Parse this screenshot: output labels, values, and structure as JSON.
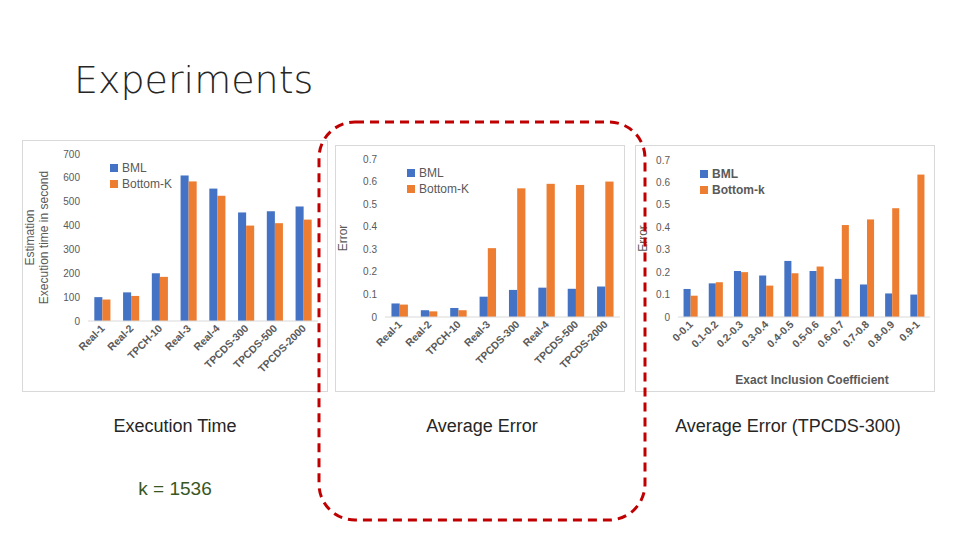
{
  "slide": {
    "title": "Experiments",
    "captions": [
      "Execution Time",
      "Average Error",
      "Average Error (TPCDS-300)"
    ],
    "note": "k = 1536"
  },
  "chart_data": [
    {
      "type": "bar",
      "ylabel": [
        "Estimation",
        "Execution time in second"
      ],
      "categories": [
        "Real-1",
        "Real-2",
        "TPCH-10",
        "Real-3",
        "Real-4",
        "TPCDS-300",
        "TPCDS-500",
        "TPCDS-2000"
      ],
      "series": [
        {
          "name": "BML",
          "color": "#4472c4",
          "values": [
            100,
            120,
            200,
            610,
            555,
            455,
            460,
            480
          ]
        },
        {
          "name": "Bottom-K",
          "color": "#ed7d31",
          "values": [
            90,
            105,
            185,
            585,
            525,
            400,
            410,
            425
          ]
        }
      ],
      "ylim": [
        0,
        700
      ],
      "yticks": [
        0,
        100,
        200,
        300,
        400,
        500,
        600,
        700
      ],
      "grid": false,
      "legend": "upper left"
    },
    {
      "type": "bar",
      "ylabel": "Error",
      "categories": [
        "Real-1",
        "Real-2",
        "TPCH-10",
        "Real-3",
        "TPCDS-300",
        "Real-4",
        "TPCDS-500",
        "TPCDS-2000"
      ],
      "series": [
        {
          "name": "BML",
          "color": "#4472c4",
          "values": [
            0.06,
            0.03,
            0.04,
            0.09,
            0.12,
            0.13,
            0.125,
            0.135
          ]
        },
        {
          "name": "Bottom-K",
          "color": "#ed7d31",
          "values": [
            0.055,
            0.025,
            0.03,
            0.305,
            0.57,
            0.59,
            0.585,
            0.6
          ]
        }
      ],
      "ylim": [
        0,
        0.7
      ],
      "yticks": [
        0,
        0.1,
        0.2,
        0.3,
        0.4,
        0.5,
        0.6,
        0.7
      ],
      "grid": false,
      "legend": "upper left"
    },
    {
      "type": "bar",
      "ylabel": "Error",
      "xlabel": "Exact Inclusion Coefficient",
      "categories": [
        "0-0.1",
        "0.1-0.2",
        "0.2-0.3",
        "0.3-0.4",
        "0.4-0.5",
        "0.5-0.6",
        "0.6-0.7",
        "0.7-0.8",
        "0.8-0.9",
        "0.9-1"
      ],
      "series": [
        {
          "name": "BML",
          "color": "#4472c4",
          "values": [
            0.125,
            0.15,
            0.205,
            0.185,
            0.25,
            0.205,
            0.17,
            0.145,
            0.105,
            0.1
          ]
        },
        {
          "name": "Bottom-k",
          "color": "#ed7d31",
          "values": [
            0.095,
            0.155,
            0.2,
            0.14,
            0.195,
            0.225,
            0.41,
            0.435,
            0.485,
            0.635
          ]
        }
      ],
      "ylim": [
        0,
        0.7
      ],
      "yticks": [
        0,
        0.1,
        0.2,
        0.3,
        0.4,
        0.5,
        0.6,
        0.7
      ],
      "grid": false,
      "legend": "upper left"
    }
  ]
}
